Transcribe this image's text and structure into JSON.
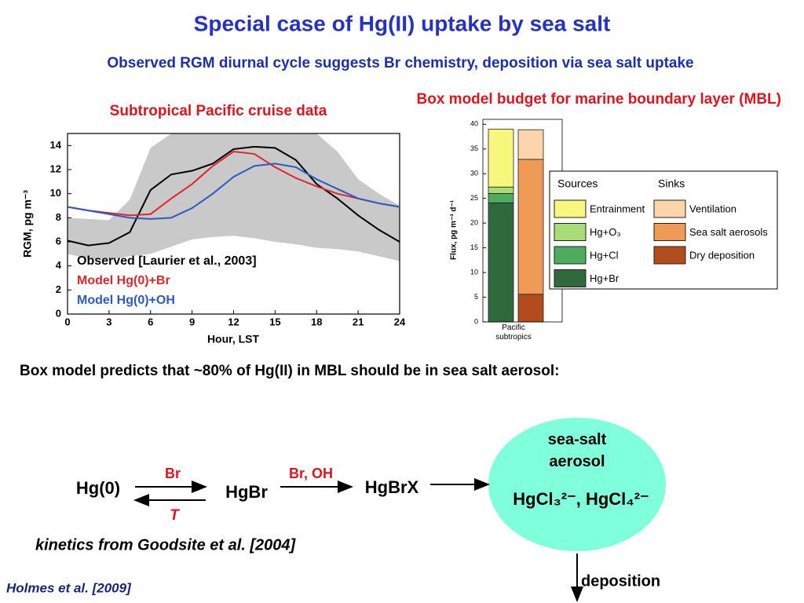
{
  "title": "Special case of Hg(II) uptake by sea salt",
  "subtitle": "Observed RGM diurnal cycle suggests Br chemistry, deposition via sea salt uptake",
  "chart_data": [
    {
      "type": "line",
      "title": "Subtropical Pacific cruise data",
      "x_label": "Hour, LST",
      "y_label": "RGM, pg m⁻³",
      "x": [
        0,
        1.5,
        3,
        4.5,
        6,
        7.5,
        9,
        10.5,
        12,
        13.5,
        15,
        16.5,
        18,
        19.5,
        21,
        22.5,
        24
      ],
      "xlim": [
        0,
        24
      ],
      "xticks": [
        0,
        3,
        6,
        9,
        12,
        15,
        18,
        21,
        24
      ],
      "ylim": [
        0,
        15
      ],
      "yticks": [
        0,
        2,
        4,
        6,
        8,
        10,
        12,
        14
      ],
      "band": {
        "color": "#c9c9c9",
        "lower": [
          5.0,
          4.6,
          4.5,
          4.8,
          5.0,
          5.6,
          6.2,
          6.4,
          6.5,
          6.3,
          6.0,
          5.8,
          5.5,
          5.4,
          5.2,
          4.8,
          4.4
        ],
        "upper": [
          8.0,
          7.9,
          7.8,
          9.5,
          13.8,
          15,
          15,
          15,
          15,
          15,
          15,
          15,
          15,
          13.5,
          11.2,
          10.0,
          9.0
        ]
      },
      "series": [
        {
          "name": "Observed [Laurier et al., 2003]",
          "color": "#000000",
          "values": [
            6.1,
            5.7,
            5.9,
            6.8,
            10.3,
            11.6,
            11.9,
            12.5,
            13.7,
            13.9,
            13.8,
            12.8,
            10.8,
            9.6,
            8.2,
            7.0,
            6.0
          ]
        },
        {
          "name": "Model Hg(0)+Br",
          "color": "#e0262b",
          "values": [
            8.9,
            8.6,
            8.4,
            8.2,
            8.3,
            9.6,
            10.8,
            12.3,
            13.5,
            13.3,
            12.2,
            11.3,
            10.6,
            10.0,
            9.6,
            9.2,
            8.9
          ]
        },
        {
          "name": "Model Hg(0)+OH",
          "color": "#2a5bc4",
          "values": [
            8.9,
            8.6,
            8.3,
            8.0,
            7.9,
            8.0,
            8.8,
            10.0,
            11.4,
            12.3,
            12.5,
            12.2,
            11.2,
            10.4,
            9.6,
            9.2,
            8.9
          ]
        }
      ],
      "legend": "lower left"
    },
    {
      "type": "stacked-bar",
      "title": "Box model budget for marine boundary layer (MBL)",
      "y_label": "Flux, pg m⁻³ d⁻¹",
      "categories": [
        "Pacific subtropics"
      ],
      "ylim": [
        0,
        41
      ],
      "yticks": [
        0,
        5,
        10,
        15,
        20,
        25,
        30,
        35,
        40
      ],
      "legend_groups": [
        "Sources",
        "Sinks"
      ],
      "series": [
        {
          "name": "Entrainment",
          "color": "#f6f77c",
          "group": 0,
          "values": [
            11.7
          ]
        },
        {
          "name": "Hg+O₃",
          "color": "#a9dc75",
          "group": 0,
          "values": [
            1.3
          ]
        },
        {
          "name": "Hg+Cl",
          "color": "#4eab60",
          "group": 0,
          "values": [
            1.9
          ]
        },
        {
          "name": "Hg+Br",
          "color": "#2f6a3d",
          "group": 0,
          "values": [
            24.1
          ]
        },
        {
          "name": "Ventilation",
          "color": "#fdd5ab",
          "group": 1,
          "values": [
            6.0
          ]
        },
        {
          "name": "Sea salt aerosols",
          "color": "#f09b55",
          "group": 1,
          "values": [
            27.3
          ]
        },
        {
          "name": "Dry deposition",
          "color": "#b24c1c",
          "group": 1,
          "values": [
            5.6
          ]
        }
      ]
    }
  ],
  "statement": "Box model predicts that ~80% of Hg(II) in MBL should be in sea salt aerosol:",
  "diagram": {
    "nodes": [
      "Hg(0)",
      "HgBr",
      "HgBrX"
    ],
    "edge_labels": [
      "Br",
      "T",
      "Br, OH",
      "deposition"
    ],
    "aerosol": {
      "label": "sea-salt aerosol",
      "species": "HgCl₃²⁻, HgCl₄²⁻"
    },
    "note": "kinetics from Goodsite et al. [2004]"
  },
  "citation": "Holmes et al. [2009]"
}
